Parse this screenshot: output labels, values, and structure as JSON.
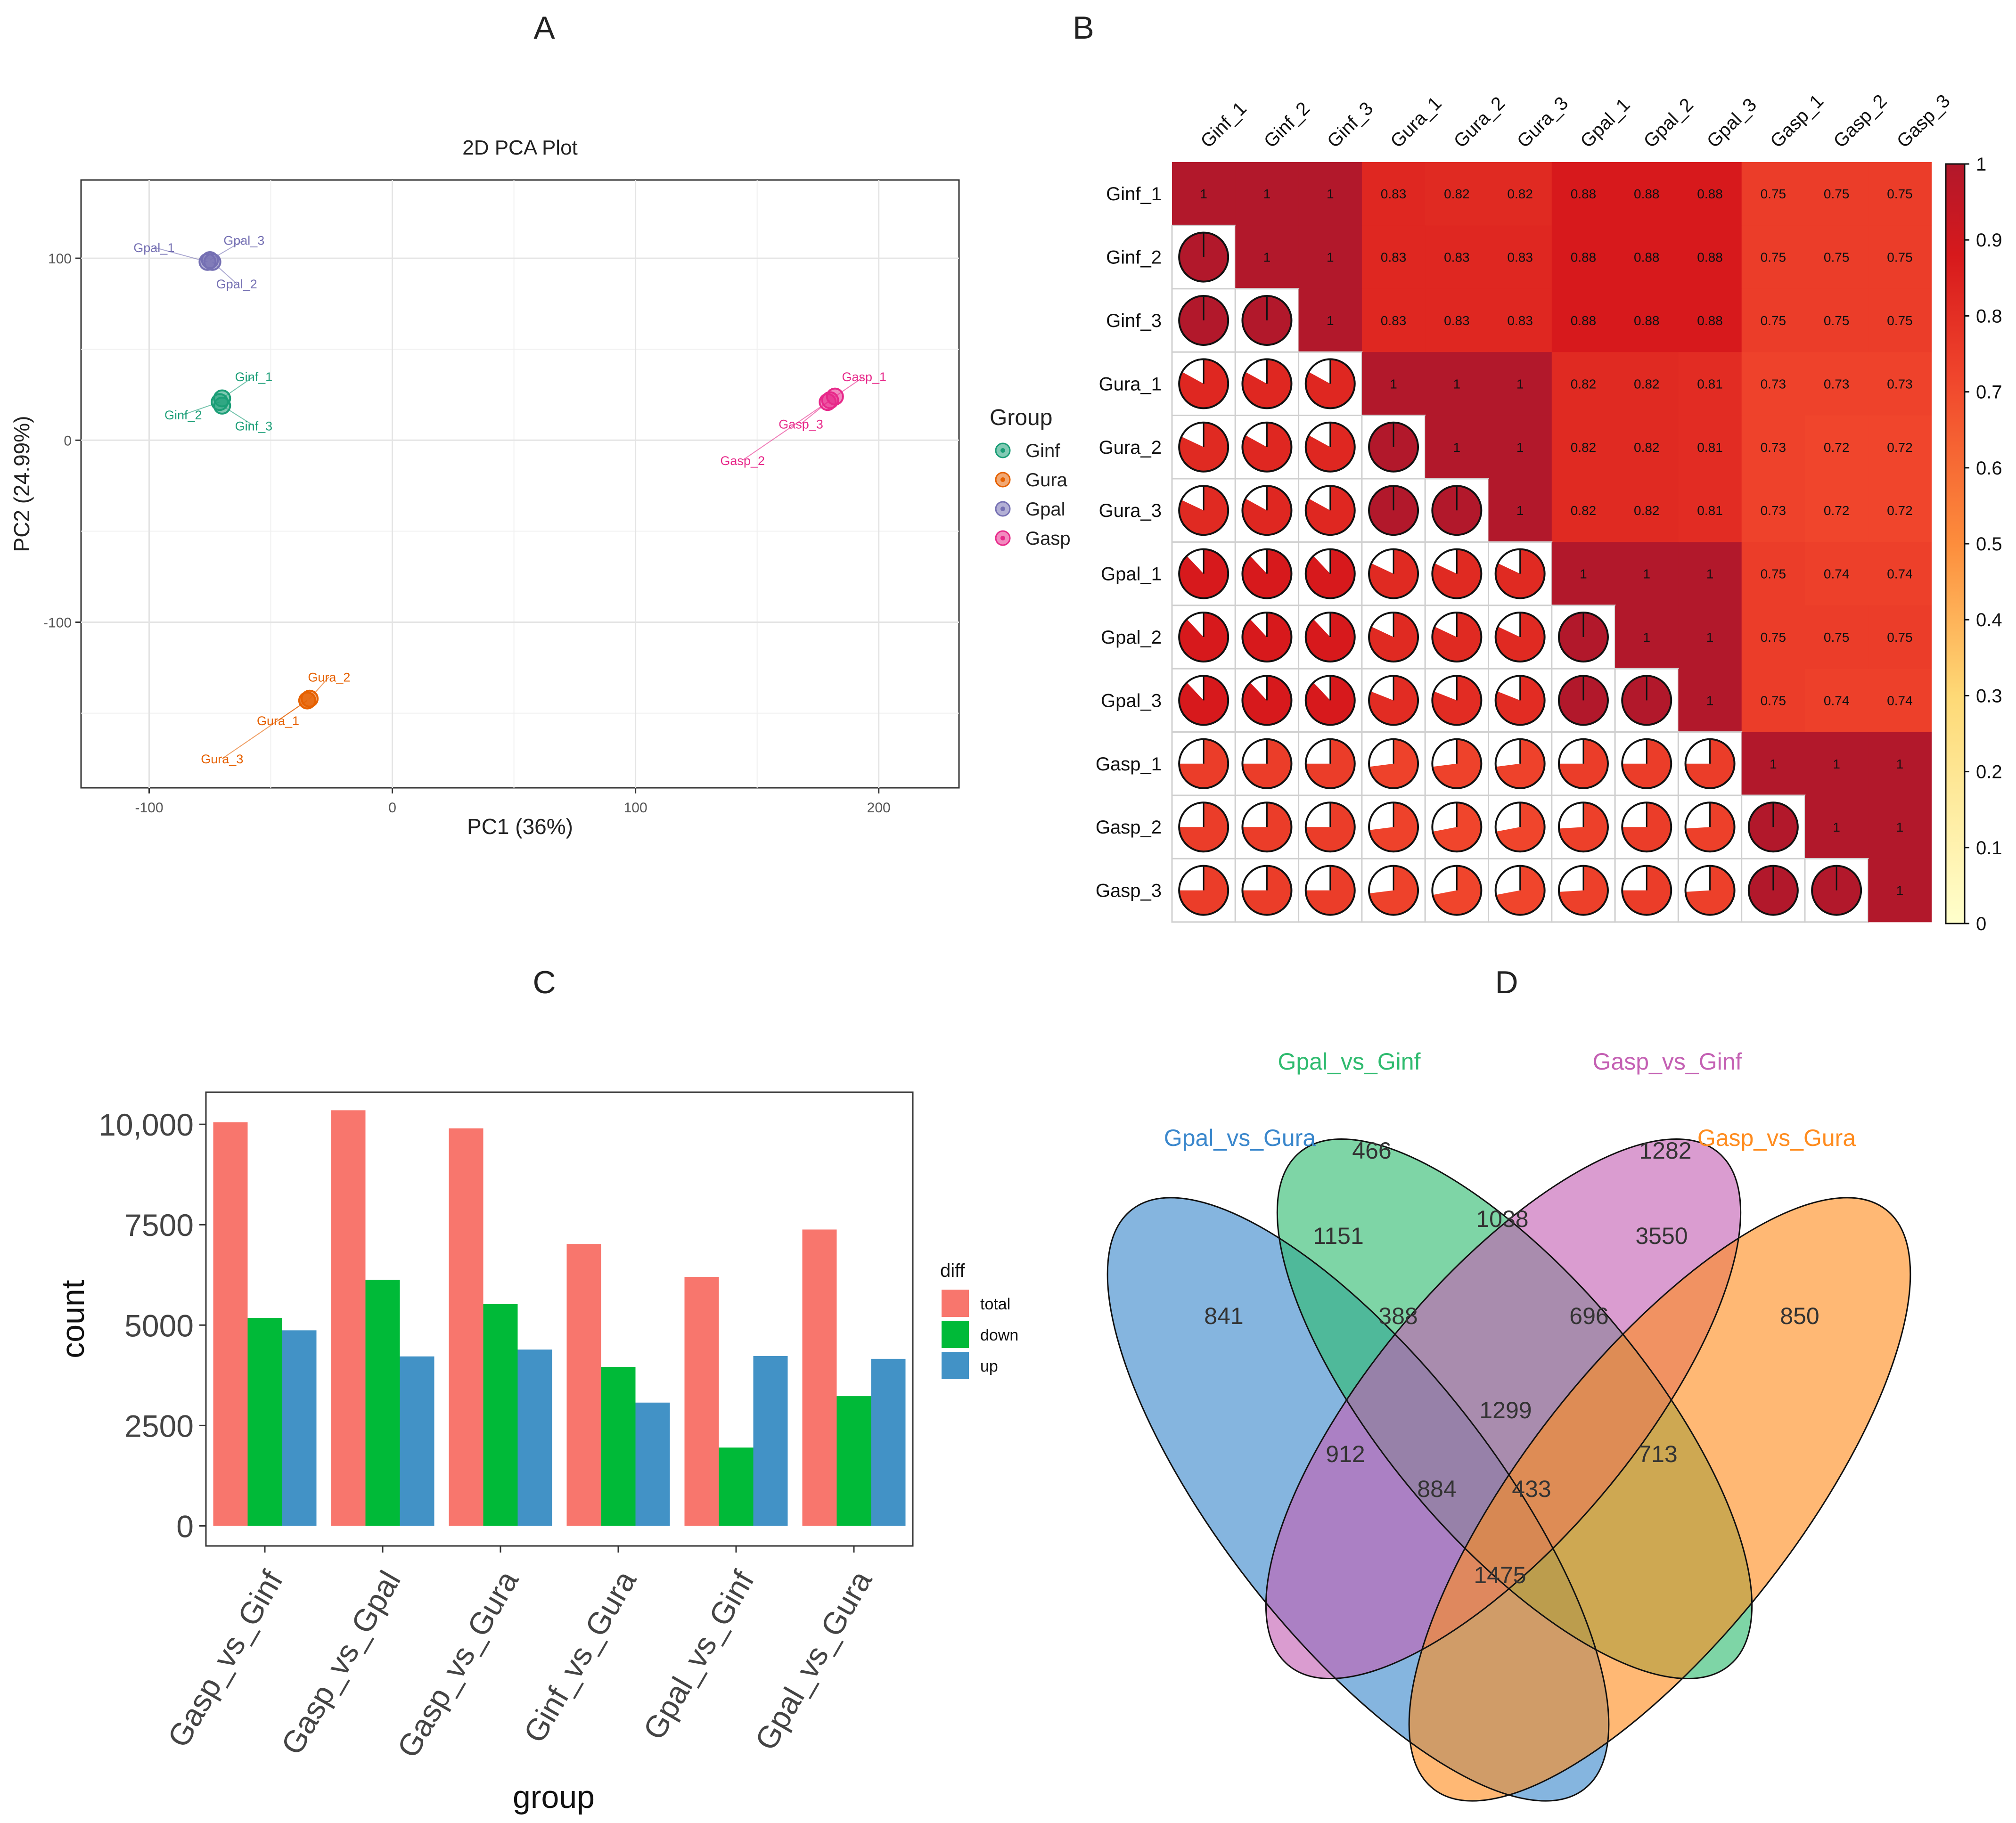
{
  "panel_letters": {
    "a": "A",
    "b": "B",
    "c": "C",
    "d": "D"
  },
  "colors": {
    "Ginf": "#1b9e77",
    "Gura": "#e66101",
    "Gpal": "#7570b3",
    "Gasp": "#e7298a",
    "total": "#f8766d",
    "down": "#00ba38",
    "up": "#4292c6",
    "venn_blue": "#3a87cc",
    "venn_green": "#2fbb6f",
    "venn_pink": "#c460b3",
    "venn_orange": "#ff8c1f",
    "heat_low": "#ffffcc",
    "heat_mid": "#fd8d3c",
    "heat_high": "#e31a1c",
    "heat_top": "#b2182b"
  },
  "chart_data": [
    {
      "id": "A",
      "type": "scatter",
      "title": "2D PCA Plot",
      "xlabel": "PC1 (36%)",
      "ylabel": "PC2 (24.99%)",
      "xlim": [
        -128,
        233
      ],
      "ylim": [
        -191,
        143
      ],
      "xticks": [
        -100,
        0,
        100,
        200
      ],
      "xtick_labels": [
        "-100",
        "0",
        "100",
        "200"
      ],
      "yticks": [
        -100,
        0,
        100
      ],
      "ytick_labels": [
        "-100",
        "0",
        "100"
      ],
      "legend_title": "Group",
      "legend": [
        "Ginf",
        "Gura",
        "Gpal",
        "Gasp"
      ],
      "points": [
        {
          "label": "Ginf_1",
          "group": "Ginf",
          "x": -70,
          "y": 23,
          "lx": -57,
          "ly": 35
        },
        {
          "label": "Ginf_2",
          "group": "Ginf",
          "x": -71,
          "y": 21,
          "lx": -86,
          "ly": 14
        },
        {
          "label": "Ginf_3",
          "group": "Ginf",
          "x": -70,
          "y": 19,
          "lx": -57,
          "ly": 8
        },
        {
          "label": "Gura_1",
          "group": "Gura",
          "x": -35,
          "y": -143,
          "lx": -47,
          "ly": -154
        },
        {
          "label": "Gura_2",
          "group": "Gura",
          "x": -34,
          "y": -142,
          "lx": -26,
          "ly": -130
        },
        {
          "label": "Gura_3",
          "group": "Gura",
          "x": -35,
          "y": -143,
          "lx": -70,
          "ly": -175
        },
        {
          "label": "Gpal_1",
          "group": "Gpal",
          "x": -76,
          "y": 98,
          "lx": -98,
          "ly": 106
        },
        {
          "label": "Gpal_2",
          "group": "Gpal",
          "x": -74,
          "y": 98,
          "lx": -64,
          "ly": 86
        },
        {
          "label": "Gpal_3",
          "group": "Gpal",
          "x": -75,
          "y": 99,
          "lx": -61,
          "ly": 110
        },
        {
          "label": "Gasp_1",
          "group": "Gasp",
          "x": 182,
          "y": 24,
          "lx": 194,
          "ly": 35
        },
        {
          "label": "Gasp_2",
          "group": "Gasp",
          "x": 179,
          "y": 21,
          "lx": 144,
          "ly": -11
        },
        {
          "label": "Gasp_3",
          "group": "Gasp",
          "x": 180,
          "y": 22,
          "lx": 168,
          "ly": 9
        }
      ]
    },
    {
      "id": "B",
      "type": "heatmap",
      "labels": [
        "Ginf_1",
        "Ginf_2",
        "Ginf_3",
        "Gura_1",
        "Gura_2",
        "Gura_3",
        "Gpal_1",
        "Gpal_2",
        "Gpal_3",
        "Gasp_1",
        "Gasp_2",
        "Gasp_3"
      ],
      "matrix": [
        [
          1,
          1,
          1,
          0.83,
          0.82,
          0.82,
          0.88,
          0.88,
          0.88,
          0.75,
          0.75,
          0.75
        ],
        [
          1,
          1,
          1,
          0.83,
          0.83,
          0.83,
          0.88,
          0.88,
          0.88,
          0.75,
          0.75,
          0.75
        ],
        [
          1,
          1,
          1,
          0.83,
          0.83,
          0.83,
          0.88,
          0.88,
          0.88,
          0.75,
          0.75,
          0.75
        ],
        [
          0.83,
          0.83,
          0.83,
          1,
          1,
          1,
          0.82,
          0.82,
          0.81,
          0.73,
          0.73,
          0.73
        ],
        [
          0.82,
          0.83,
          0.83,
          1,
          1,
          1,
          0.82,
          0.82,
          0.81,
          0.73,
          0.72,
          0.72
        ],
        [
          0.82,
          0.83,
          0.83,
          1,
          1,
          1,
          0.82,
          0.82,
          0.81,
          0.73,
          0.72,
          0.72
        ],
        [
          0.88,
          0.88,
          0.88,
          0.82,
          0.82,
          0.82,
          1,
          1,
          1,
          0.75,
          0.74,
          0.74
        ],
        [
          0.88,
          0.88,
          0.88,
          0.82,
          0.82,
          0.82,
          1,
          1,
          1,
          0.75,
          0.75,
          0.75
        ],
        [
          0.88,
          0.88,
          0.88,
          0.81,
          0.81,
          0.81,
          1,
          1,
          1,
          0.75,
          0.74,
          0.74
        ],
        [
          0.75,
          0.75,
          0.75,
          0.73,
          0.73,
          0.73,
          0.75,
          0.75,
          0.75,
          1,
          1,
          1
        ],
        [
          0.75,
          0.75,
          0.75,
          0.73,
          0.72,
          0.72,
          0.74,
          0.75,
          0.74,
          1,
          1,
          1
        ],
        [
          0.75,
          0.75,
          0.75,
          0.73,
          0.72,
          0.72,
          0.74,
          0.75,
          0.74,
          1,
          1,
          1
        ]
      ],
      "lower_triangle": "pie",
      "upper_triangle": "number",
      "colorbar_ticks": [
        0,
        0.1,
        0.2,
        0.3,
        0.4,
        0.5,
        0.6,
        0.7,
        0.8,
        0.9,
        1
      ],
      "colorbar_labels": [
        "0",
        "0.1",
        "0.2",
        "0.3",
        "0.4",
        "0.5",
        "0.6",
        "0.7",
        "0.8",
        "0.9",
        "1"
      ]
    },
    {
      "id": "C",
      "type": "bar",
      "xlabel": "group",
      "ylabel": "count",
      "ylim": [
        -500,
        10800
      ],
      "yticks": [
        0,
        2500,
        5000,
        7500,
        10000
      ],
      "ytick_labels": [
        "0",
        "2500",
        "5000",
        "7500",
        "10,000"
      ],
      "categories": [
        "Gasp_vs_Ginf",
        "Gasp_vs_Gpal",
        "Gasp_vs_Gura",
        "Ginf_vs_Gura",
        "Gpal_vs_Ginf",
        "Gpal_vs_Gura"
      ],
      "legend_title": "diff",
      "series": [
        {
          "name": "total",
          "values": [
            10050,
            10350,
            9900,
            7020,
            6200,
            7380
          ]
        },
        {
          "name": "down",
          "values": [
            5180,
            6130,
            5520,
            3960,
            1950,
            3230
          ]
        },
        {
          "name": "up",
          "values": [
            4870,
            4220,
            4390,
            3070,
            4230,
            4160
          ]
        }
      ]
    },
    {
      "id": "D",
      "type": "venn",
      "sets": [
        "Gpal_vs_Gura",
        "Gpal_vs_Ginf",
        "Gasp_vs_Ginf",
        "Gasp_vs_Gura"
      ],
      "regions": [
        {
          "sets": [
            "Gpal_vs_Gura"
          ],
          "value": "841"
        },
        {
          "sets": [
            "Gpal_vs_Ginf"
          ],
          "value": "466"
        },
        {
          "sets": [
            "Gasp_vs_Ginf"
          ],
          "value": "1282"
        },
        {
          "sets": [
            "Gasp_vs_Gura"
          ],
          "value": "850"
        },
        {
          "sets": [
            "Gpal_vs_Gura",
            "Gpal_vs_Ginf"
          ],
          "value": "1151"
        },
        {
          "sets": [
            "Gpal_vs_Ginf",
            "Gasp_vs_Ginf"
          ],
          "value": "1038"
        },
        {
          "sets": [
            "Gasp_vs_Ginf",
            "Gasp_vs_Gura"
          ],
          "value": "3550"
        },
        {
          "sets": [
            "Gpal_vs_Gura",
            "Gpal_vs_Ginf",
            "Gasp_vs_Ginf"
          ],
          "value": "388"
        },
        {
          "sets": [
            "Gpal_vs_Ginf",
            "Gasp_vs_Ginf",
            "Gasp_vs_Gura"
          ],
          "value": "696"
        },
        {
          "sets": [
            "Gpal_vs_Gura",
            "Gpal_vs_Ginf",
            "Gasp_vs_Ginf",
            "Gasp_vs_Gura"
          ],
          "value": "1299"
        },
        {
          "sets": [
            "Gpal_vs_Gura",
            "Gasp_vs_Ginf"
          ],
          "value": "912"
        },
        {
          "sets": [
            "Gpal_vs_Ginf",
            "Gasp_vs_Gura"
          ],
          "value": "713"
        },
        {
          "sets": [
            "Gpal_vs_Gura",
            "Gasp_vs_Ginf",
            "Gasp_vs_Gura"
          ],
          "value": "884"
        },
        {
          "sets": [
            "Gpal_vs_Gura",
            "Gpal_vs_Ginf",
            "Gasp_vs_Gura"
          ],
          "value": "433"
        },
        {
          "sets": [
            "Gpal_vs_Gura",
            "Gasp_vs_Gura"
          ],
          "value": "1475"
        }
      ]
    }
  ]
}
